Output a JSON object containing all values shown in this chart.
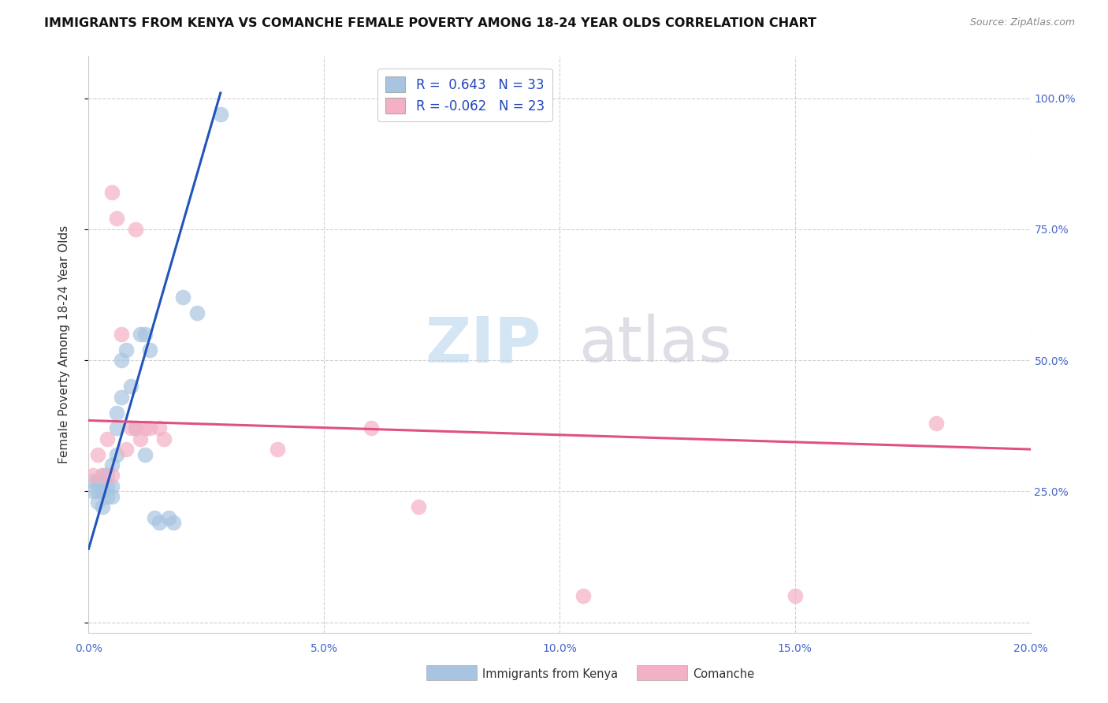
{
  "title": "IMMIGRANTS FROM KENYA VS COMANCHE FEMALE POVERTY AMONG 18-24 YEAR OLDS CORRELATION CHART",
  "source": "Source: ZipAtlas.com",
  "ylabel": "Female Poverty Among 18-24 Year Olds",
  "xlim": [
    0.0,
    0.2
  ],
  "ylim": [
    -0.02,
    1.08
  ],
  "ytick_positions": [
    0.0,
    0.25,
    0.5,
    0.75,
    1.0
  ],
  "ytick_labels": [
    "",
    "25.0%",
    "50.0%",
    "75.0%",
    "100.0%"
  ],
  "xtick_positions": [
    0.0,
    0.05,
    0.1,
    0.15,
    0.2
  ],
  "xtick_labels": [
    "0.0%",
    "5.0%",
    "10.0%",
    "15.0%",
    "20.0%"
  ],
  "kenya_color": "#a8c4e0",
  "kenya_line_color": "#2255bb",
  "comanche_color": "#f4b0c4",
  "comanche_line_color": "#e05080",
  "kenya_R": 0.643,
  "kenya_N": 33,
  "comanche_R": -0.062,
  "comanche_N": 23,
  "kenya_scatter": [
    [
      0.001,
      0.27
    ],
    [
      0.001,
      0.25
    ],
    [
      0.002,
      0.27
    ],
    [
      0.002,
      0.25
    ],
    [
      0.002,
      0.23
    ],
    [
      0.003,
      0.28
    ],
    [
      0.003,
      0.25
    ],
    [
      0.003,
      0.22
    ],
    [
      0.004,
      0.28
    ],
    [
      0.004,
      0.26
    ],
    [
      0.004,
      0.24
    ],
    [
      0.005,
      0.3
    ],
    [
      0.005,
      0.26
    ],
    [
      0.005,
      0.24
    ],
    [
      0.006,
      0.4
    ],
    [
      0.006,
      0.37
    ],
    [
      0.006,
      0.32
    ],
    [
      0.007,
      0.5
    ],
    [
      0.007,
      0.43
    ],
    [
      0.008,
      0.52
    ],
    [
      0.009,
      0.45
    ],
    [
      0.01,
      0.37
    ],
    [
      0.011,
      0.55
    ],
    [
      0.012,
      0.55
    ],
    [
      0.012,
      0.32
    ],
    [
      0.013,
      0.52
    ],
    [
      0.014,
      0.2
    ],
    [
      0.015,
      0.19
    ],
    [
      0.017,
      0.2
    ],
    [
      0.018,
      0.19
    ],
    [
      0.02,
      0.62
    ],
    [
      0.023,
      0.59
    ],
    [
      0.028,
      0.97
    ]
  ],
  "comanche_scatter": [
    [
      0.001,
      0.28
    ],
    [
      0.002,
      0.32
    ],
    [
      0.003,
      0.28
    ],
    [
      0.004,
      0.35
    ],
    [
      0.005,
      0.28
    ],
    [
      0.005,
      0.82
    ],
    [
      0.006,
      0.77
    ],
    [
      0.007,
      0.55
    ],
    [
      0.008,
      0.33
    ],
    [
      0.009,
      0.37
    ],
    [
      0.01,
      0.75
    ],
    [
      0.01,
      0.37
    ],
    [
      0.011,
      0.35
    ],
    [
      0.012,
      0.37
    ],
    [
      0.013,
      0.37
    ],
    [
      0.015,
      0.37
    ],
    [
      0.016,
      0.35
    ],
    [
      0.04,
      0.33
    ],
    [
      0.06,
      0.37
    ],
    [
      0.07,
      0.22
    ],
    [
      0.105,
      0.05
    ],
    [
      0.15,
      0.05
    ],
    [
      0.18,
      0.38
    ]
  ],
  "kenya_trendline": [
    [
      0.0,
      0.14
    ],
    [
      0.028,
      1.01
    ]
  ],
  "comanche_trendline": [
    [
      0.0,
      0.385
    ],
    [
      0.2,
      0.33
    ]
  ],
  "watermark_zip": "ZIP",
  "watermark_atlas": "atlas",
  "background_color": "#ffffff",
  "grid_color": "#d0d0d0",
  "tick_color": "#4466cc",
  "ylabel_color": "#333333",
  "title_color": "#111111",
  "source_color": "#888888",
  "legend_label_color": "#2244bb"
}
